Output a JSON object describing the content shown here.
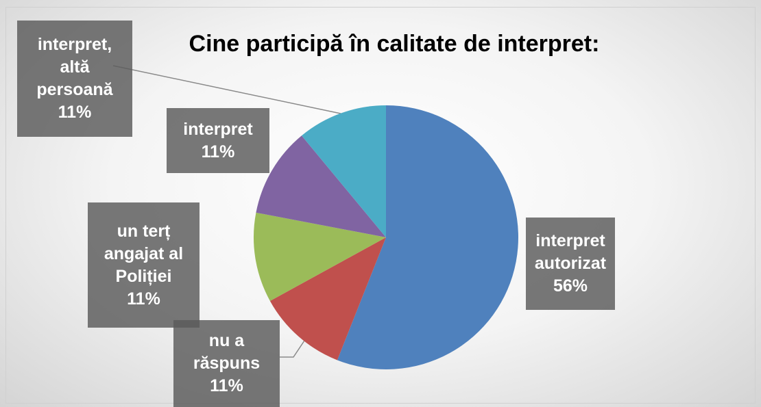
{
  "chart_data": {
    "type": "pie",
    "title": "Cine participă în calitate de interpret:",
    "categories": [
      "interpret autorizat",
      "nu a răspuns",
      "un terț angajat al Poliției",
      "interpret",
      "interpret, altă persoană"
    ],
    "values": [
      56,
      11,
      11,
      11,
      11
    ],
    "value_labels": [
      "56%",
      "11%",
      "11%",
      "11%",
      "11%"
    ],
    "colors": [
      "#4f81bd",
      "#c0504d",
      "#9bbb59",
      "#8064a2",
      "#4bacc6"
    ]
  }
}
